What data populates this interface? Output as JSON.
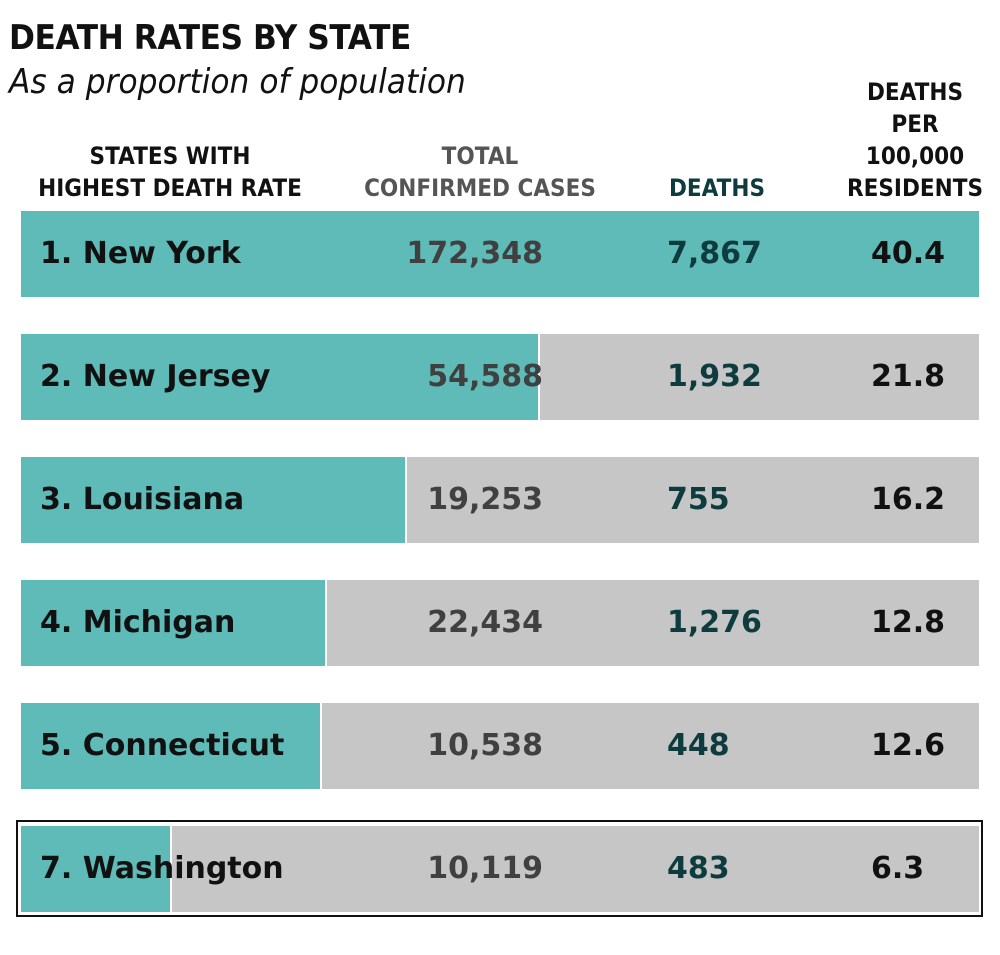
{
  "header": {
    "title": "DEATH RATES BY STATE",
    "subtitle": "As a proportion of population"
  },
  "columns": {
    "state": [
      "STATES WITH",
      "HIGHEST DEATH RATE"
    ],
    "cases": [
      "TOTAL",
      "CONFIRMED CASES"
    ],
    "deaths": [
      "DEATHS"
    ],
    "rate": [
      "DEATHS",
      "PER",
      "100,000",
      "RESIDENTS"
    ]
  },
  "colors": {
    "bar": "#5fbbb8",
    "track": "#c6c6c6",
    "deaths_text": "#0d3b3e",
    "cases_text": "#404040"
  },
  "chart_data": {
    "type": "table",
    "bar_measure": "deaths per 100,000 residents",
    "bar_max": 40.4,
    "columns": [
      "STATES WITH HIGHEST DEATH RATE",
      "TOTAL CONFIRMED CASES",
      "DEATHS",
      "DEATHS PER 100,000 RESIDENTS"
    ],
    "rows": [
      {
        "label": "1. New York",
        "cases": "172,348",
        "deaths": "7,867",
        "rate": "40.4",
        "rate_value": 40.4
      },
      {
        "label": "2. New Jersey",
        "cases": "54,588",
        "deaths": "1,932",
        "rate": "21.8",
        "rate_value": 21.8
      },
      {
        "label": "3. Louisiana",
        "cases": "19,253",
        "deaths": "755",
        "rate": "16.2",
        "rate_value": 16.2
      },
      {
        "label": "4. Michigan",
        "cases": "22,434",
        "deaths": "1,276",
        "rate": "12.8",
        "rate_value": 12.8
      },
      {
        "label": "5. Connecticut",
        "cases": "10,538",
        "deaths": "448",
        "rate": "12.6",
        "rate_value": 12.6
      },
      {
        "label": "7. Washington",
        "cases": "10,119",
        "deaths": "483",
        "rate": "6.3",
        "rate_value": 6.3,
        "highlighted": true
      }
    ]
  }
}
